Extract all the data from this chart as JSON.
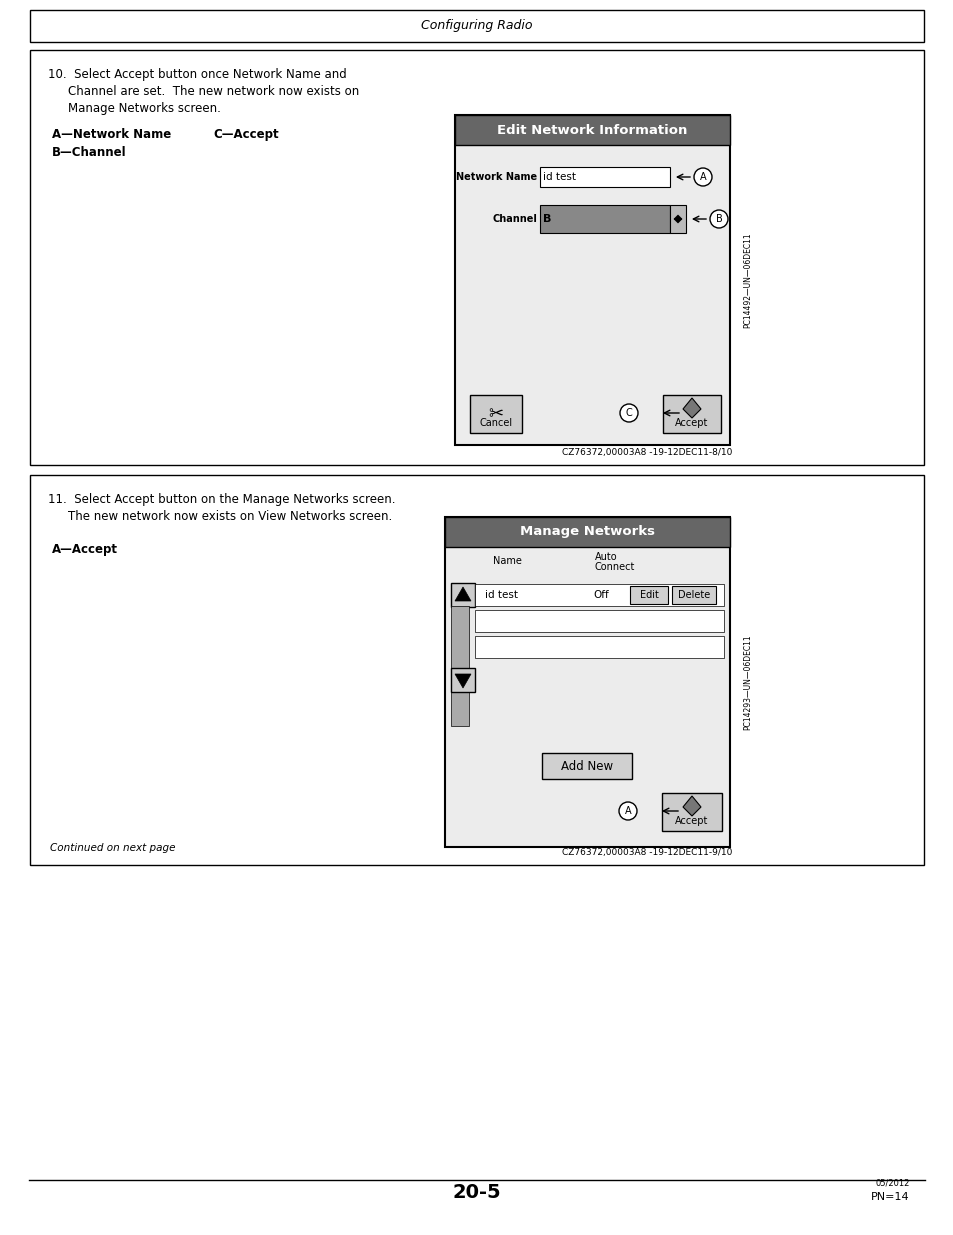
{
  "page_title": "Configuring Radio",
  "footer_page": "20-5",
  "footer_pn": "PN=14",
  "footer_date": "05/2012",
  "bg_color": "#ffffff",
  "section1": {
    "screen_title": "Edit Network Information",
    "watermark": "PC14492—UN—06DEC11",
    "ref_code": "CZ76372,00003A8 -19-12DEC11-8/10"
  },
  "section2": {
    "screen_title": "Manage Networks",
    "watermark": "PC14293—UN—06DEC11",
    "ref_code": "CZ76372,00003A8 -19-12DEC11-9/10",
    "continued": "Continued on next page"
  }
}
